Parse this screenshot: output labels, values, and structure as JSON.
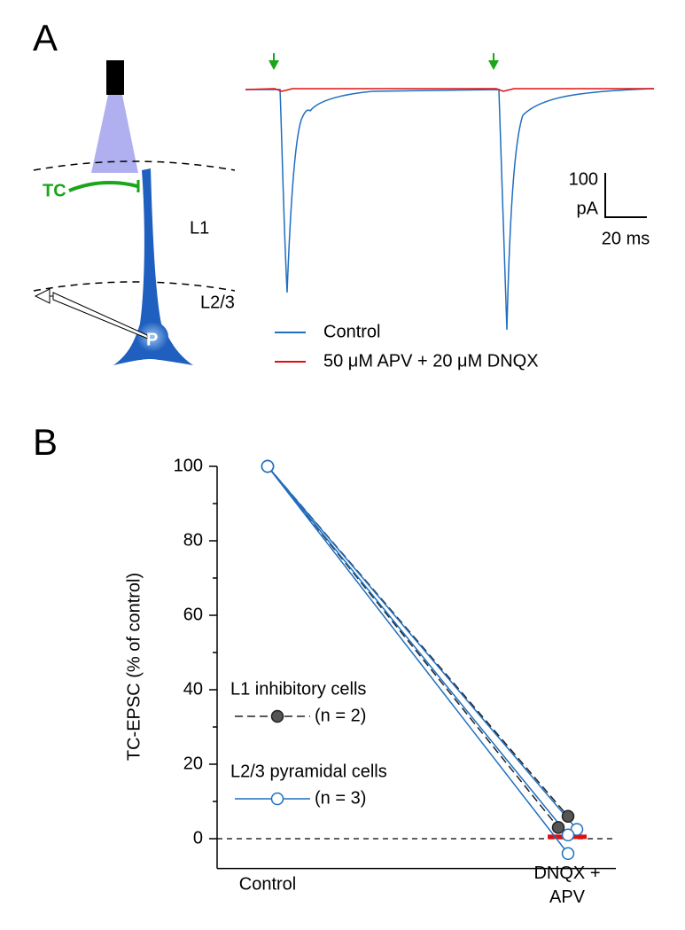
{
  "panel_a": {
    "label": "A",
    "tc_label": "TC",
    "layer_1": "L1",
    "layer_23": "L2/3",
    "cell": "P",
    "scale_current": "100",
    "scale_current_unit": "pA",
    "scale_time": "20 ms",
    "legend": [
      {
        "name": "Control",
        "color": "#1f6fc0"
      },
      {
        "name": "50 μM APV + 20 μM DNQX",
        "color": "#e01010"
      }
    ]
  },
  "chart_data": {
    "type": "line",
    "panel_label": "B",
    "ylabel": "TC-EPSC (% of control)",
    "categories": [
      "Control",
      "DNQX + APV"
    ],
    "ylim": [
      -8,
      100
    ],
    "yticks": [
      0,
      20,
      40,
      60,
      80,
      100
    ],
    "minor_yticks": [
      10,
      30,
      50,
      70,
      90
    ],
    "zero_line": true,
    "groups": [
      {
        "name": "L1 inhibitory cells",
        "count_label": "(n = 2)",
        "color": "#222222",
        "marker_fill": "#555555",
        "dashed": true,
        "cells": [
          [
            100,
            6
          ],
          [
            100,
            3
          ]
        ]
      },
      {
        "name": "L2/3 pyramidal cells",
        "count_label": "(n = 3)",
        "color": "#1f6fc0",
        "marker_fill": "#ffffff",
        "dashed": false,
        "cells": [
          [
            100,
            2.5
          ],
          [
            100,
            1
          ],
          [
            100,
            -4
          ]
        ]
      }
    ],
    "mean": {
      "color": "#e01010",
      "values": [
        null,
        0.5
      ]
    }
  }
}
